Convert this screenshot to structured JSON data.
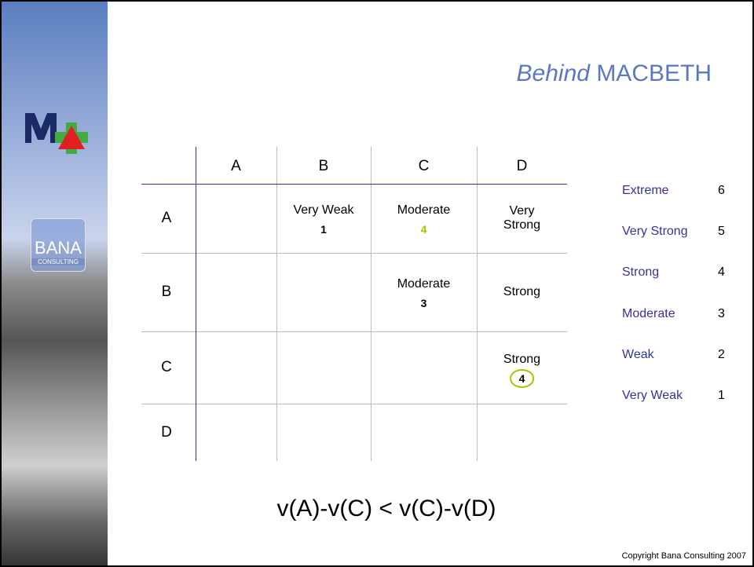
{
  "title": {
    "emphasis": "Behind",
    "text": "MACBETH"
  },
  "logo": {
    "name": "BANA",
    "subtitle": "CONSULTING"
  },
  "matrix": {
    "columns": [
      "A",
      "B",
      "C",
      "D"
    ],
    "rows": [
      {
        "label": "A",
        "cells": [
          null,
          {
            "text": "Very Weak",
            "value": 1
          },
          {
            "text": "Moderate",
            "value": 4,
            "value_color": "#99cc00"
          },
          {
            "text": "Very Strong"
          }
        ]
      },
      {
        "label": "B",
        "cells": [
          null,
          null,
          {
            "text": "Moderate",
            "value": 3
          },
          {
            "text": "Strong"
          }
        ]
      },
      {
        "label": "C",
        "cells": [
          null,
          null,
          null,
          {
            "text": "Strong",
            "value": 4,
            "circled": true
          }
        ]
      },
      {
        "label": "D",
        "cells": [
          null,
          null,
          null,
          null
        ]
      }
    ]
  },
  "scale": [
    {
      "label": "Extreme",
      "value": 6
    },
    {
      "label": "Very Strong",
      "value": 5
    },
    {
      "label": "Strong",
      "value": 4
    },
    {
      "label": "Moderate",
      "value": 3
    },
    {
      "label": "Weak",
      "value": 2
    },
    {
      "label": "Very Weak",
      "value": 1
    }
  ],
  "formula": "v(A)-v(C) < v(C)-v(D)",
  "copyright": "Copyright Bana Consulting 2007"
}
